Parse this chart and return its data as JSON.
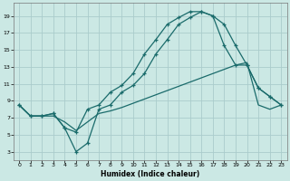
{
  "xlabel": "Humidex (Indice chaleur)",
  "background_color": "#cbe8e4",
  "grid_color": "#aacccc",
  "line_color": "#1a6b6b",
  "xlim": [
    -0.5,
    23.5
  ],
  "ylim": [
    2.0,
    20.5
  ],
  "xticks": [
    0,
    1,
    2,
    3,
    4,
    5,
    6,
    7,
    8,
    9,
    10,
    11,
    12,
    13,
    14,
    15,
    16,
    17,
    18,
    19,
    20,
    21,
    22,
    23
  ],
  "yticks": [
    3,
    5,
    7,
    9,
    11,
    13,
    15,
    17,
    19
  ],
  "line_top_x": [
    0,
    1,
    2,
    3,
    4,
    5,
    6,
    7,
    8,
    9,
    10,
    11,
    12,
    13,
    14,
    15,
    16,
    17,
    18,
    19,
    20,
    21,
    22,
    23
  ],
  "line_top_y": [
    8.5,
    7.2,
    7.2,
    7.5,
    5.8,
    5.3,
    8.0,
    8.5,
    10.0,
    10.8,
    12.2,
    14.5,
    16.2,
    18.0,
    18.8,
    19.5,
    19.5,
    19.0,
    18.0,
    15.5,
    13.2,
    10.5,
    9.5,
    8.5
  ],
  "line_mid_x": [
    0,
    1,
    2,
    3,
    4,
    5,
    6,
    7,
    8,
    9,
    10,
    11,
    12,
    13,
    14,
    15,
    16,
    17,
    18,
    19,
    20,
    21,
    22,
    23
  ],
  "line_mid_y": [
    8.5,
    7.2,
    7.2,
    7.5,
    5.8,
    3.0,
    4.0,
    8.0,
    8.5,
    10.0,
    10.8,
    12.2,
    14.5,
    16.2,
    18.0,
    18.8,
    19.5,
    19.0,
    15.5,
    13.2,
    13.2,
    10.5,
    9.5,
    8.5
  ],
  "line_low_x": [
    0,
    1,
    2,
    3,
    4,
    5,
    6,
    7,
    8,
    9,
    10,
    11,
    12,
    13,
    14,
    15,
    16,
    17,
    18,
    19,
    20,
    21,
    22,
    23
  ],
  "line_low_y": [
    8.5,
    7.2,
    7.2,
    7.2,
    6.5,
    5.5,
    6.5,
    7.5,
    7.8,
    8.2,
    8.7,
    9.2,
    9.7,
    10.2,
    10.7,
    11.2,
    11.7,
    12.2,
    12.7,
    13.2,
    13.5,
    8.5,
    8.0,
    8.5
  ]
}
